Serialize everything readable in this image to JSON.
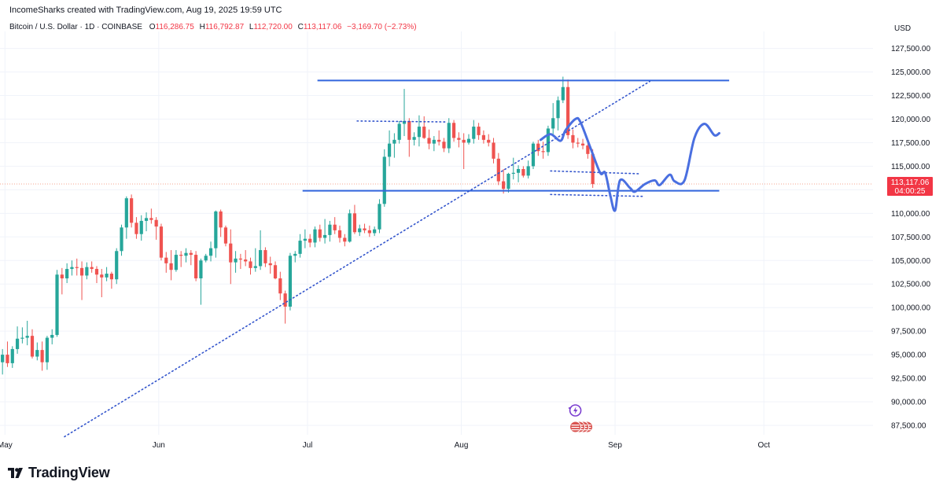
{
  "header": {
    "attribution": "IncomeSharks created with TradingView.com, Aug 19, 2025 19:59 UTC"
  },
  "legend": {
    "symbol": "Bitcoin / U.S. Dollar · 1D · COINBASE",
    "open_label": "O",
    "open": "116,286.75",
    "high_label": "H",
    "high": "116,792.87",
    "low_label": "L",
    "low": "112,720.00",
    "close_label": "C",
    "close": "113,117.06",
    "change": "−3,169.70 (−2.73%)"
  },
  "footer": {
    "brand": "TradingView",
    "logo_icon": "tradingview-logo-icon"
  },
  "chart_data": {
    "type": "candlestick",
    "currency_label": "USD",
    "y_ticks": [
      "127,500.00",
      "125,000.00",
      "122,500.00",
      "120,000.00",
      "117,500.00",
      "115,000.00",
      "112,500.00",
      "110,000.00",
      "107,500.00",
      "105,000.00",
      "102,500.00",
      "100,000.00",
      "97,500.00",
      "95,000.00",
      "92,500.00",
      "90,000.00",
      "87,500.00"
    ],
    "y_tick_values": [
      127500,
      125000,
      122500,
      120000,
      117500,
      115000,
      112500,
      110000,
      107500,
      105000,
      102500,
      100000,
      97500,
      95000,
      92500,
      90000,
      87500
    ],
    "ylim": [
      86500,
      129300
    ],
    "x_ticks": [
      {
        "label": "May",
        "date": "2025-05-01"
      },
      {
        "label": "Jun",
        "date": "2025-06-01"
      },
      {
        "label": "Jul",
        "date": "2025-07-01"
      },
      {
        "label": "Aug",
        "date": "2025-08-01"
      },
      {
        "label": "Sep",
        "date": "2025-09-01"
      },
      {
        "label": "Oct",
        "date": "2025-10-01"
      }
    ],
    "x_start": "2025-04-30",
    "x_end": "2025-10-23",
    "last_price": {
      "price": "113,117.06",
      "countdown": "04:00:25",
      "value": 113117.06
    },
    "candles": [
      {
        "o": 94200,
        "h": 95600,
        "l": 92900,
        "c": 95000
      },
      {
        "o": 95000,
        "h": 96400,
        "l": 93700,
        "c": 94100
      },
      {
        "o": 94100,
        "h": 95900,
        "l": 93600,
        "c": 95600
      },
      {
        "o": 95600,
        "h": 98000,
        "l": 95100,
        "c": 96700
      },
      {
        "o": 96700,
        "h": 97900,
        "l": 96200,
        "c": 96800
      },
      {
        "o": 96800,
        "h": 98600,
        "l": 96000,
        "c": 97000
      },
      {
        "o": 97000,
        "h": 97700,
        "l": 94600,
        "c": 94800
      },
      {
        "o": 94800,
        "h": 96300,
        "l": 94400,
        "c": 95500
      },
      {
        "o": 95500,
        "h": 96400,
        "l": 93300,
        "c": 94200
      },
      {
        "o": 94200,
        "h": 97000,
        "l": 93400,
        "c": 96800
      },
      {
        "o": 96800,
        "h": 97700,
        "l": 96100,
        "c": 97100
      },
      {
        "o": 97100,
        "h": 104000,
        "l": 96900,
        "c": 103500
      },
      {
        "o": 103500,
        "h": 104200,
        "l": 101400,
        "c": 103100
      },
      {
        "o": 103100,
        "h": 104700,
        "l": 102600,
        "c": 104100
      },
      {
        "o": 104100,
        "h": 105000,
        "l": 103400,
        "c": 104300
      },
      {
        "o": 104300,
        "h": 105200,
        "l": 103400,
        "c": 104200
      },
      {
        "o": 104200,
        "h": 104900,
        "l": 100800,
        "c": 103400
      },
      {
        "o": 103400,
        "h": 104800,
        "l": 103000,
        "c": 104300
      },
      {
        "o": 104300,
        "h": 104900,
        "l": 103700,
        "c": 104100
      },
      {
        "o": 104100,
        "h": 104400,
        "l": 102600,
        "c": 103500
      },
      {
        "o": 103500,
        "h": 104100,
        "l": 101100,
        "c": 103200
      },
      {
        "o": 103200,
        "h": 104300,
        "l": 102800,
        "c": 103600
      },
      {
        "o": 103600,
        "h": 103800,
        "l": 102000,
        "c": 103000
      },
      {
        "o": 103000,
        "h": 106300,
        "l": 102500,
        "c": 106000
      },
      {
        "o": 106000,
        "h": 108800,
        "l": 105500,
        "c": 108500
      },
      {
        "o": 108500,
        "h": 111800,
        "l": 107300,
        "c": 111600
      },
      {
        "o": 111600,
        "h": 112000,
        "l": 108500,
        "c": 109000
      },
      {
        "o": 109000,
        "h": 109600,
        "l": 107300,
        "c": 107800
      },
      {
        "o": 107800,
        "h": 109800,
        "l": 107100,
        "c": 109200
      },
      {
        "o": 109200,
        "h": 110100,
        "l": 108100,
        "c": 109500
      },
      {
        "o": 109500,
        "h": 110500,
        "l": 108900,
        "c": 109300
      },
      {
        "o": 109300,
        "h": 109600,
        "l": 107200,
        "c": 108600
      },
      {
        "o": 108600,
        "h": 108900,
        "l": 105000,
        "c": 105300
      },
      {
        "o": 105300,
        "h": 105900,
        "l": 103700,
        "c": 104700
      },
      {
        "o": 104700,
        "h": 106100,
        "l": 102900,
        "c": 104000
      },
      {
        "o": 104000,
        "h": 106100,
        "l": 103800,
        "c": 105600
      },
      {
        "o": 105600,
        "h": 106000,
        "l": 104300,
        "c": 105500
      },
      {
        "o": 105500,
        "h": 106300,
        "l": 104800,
        "c": 105800
      },
      {
        "o": 105800,
        "h": 106100,
        "l": 104500,
        "c": 105600
      },
      {
        "o": 105600,
        "h": 106000,
        "l": 102800,
        "c": 103100
      },
      {
        "o": 103100,
        "h": 105200,
        "l": 100300,
        "c": 105000
      },
      {
        "o": 105000,
        "h": 105700,
        "l": 104800,
        "c": 105500
      },
      {
        "o": 105500,
        "h": 107000,
        "l": 104900,
        "c": 106300
      },
      {
        "o": 106300,
        "h": 110300,
        "l": 105300,
        "c": 110200
      },
      {
        "o": 110200,
        "h": 110400,
        "l": 107500,
        "c": 108500
      },
      {
        "o": 108500,
        "h": 108700,
        "l": 106500,
        "c": 106800
      },
      {
        "o": 106800,
        "h": 108300,
        "l": 102500,
        "c": 104800
      },
      {
        "o": 104800,
        "h": 106000,
        "l": 103700,
        "c": 105200
      },
      {
        "o": 105200,
        "h": 105700,
        "l": 104100,
        "c": 105100
      },
      {
        "o": 105100,
        "h": 106100,
        "l": 104400,
        "c": 104900
      },
      {
        "o": 104900,
        "h": 105300,
        "l": 103500,
        "c": 104200
      },
      {
        "o": 104200,
        "h": 106300,
        "l": 103800,
        "c": 104400
      },
      {
        "o": 104400,
        "h": 108200,
        "l": 104000,
        "c": 106100
      },
      {
        "o": 106100,
        "h": 106400,
        "l": 104300,
        "c": 104700
      },
      {
        "o": 104700,
        "h": 105400,
        "l": 103600,
        "c": 104500
      },
      {
        "o": 104500,
        "h": 104900,
        "l": 103000,
        "c": 103100
      },
      {
        "o": 103100,
        "h": 103800,
        "l": 100800,
        "c": 101500
      },
      {
        "o": 101500,
        "h": 101800,
        "l": 98300,
        "c": 100100
      },
      {
        "o": 100100,
        "h": 105800,
        "l": 99700,
        "c": 105500
      },
      {
        "o": 105500,
        "h": 106000,
        "l": 104800,
        "c": 105700
      },
      {
        "o": 105700,
        "h": 107800,
        "l": 105300,
        "c": 107100
      },
      {
        "o": 107100,
        "h": 108300,
        "l": 106300,
        "c": 107300
      },
      {
        "o": 107300,
        "h": 107800,
        "l": 106400,
        "c": 106900
      },
      {
        "o": 106900,
        "h": 108600,
        "l": 106400,
        "c": 108300
      },
      {
        "o": 108300,
        "h": 108800,
        "l": 107000,
        "c": 107400
      },
      {
        "o": 107400,
        "h": 109400,
        "l": 106800,
        "c": 107700
      },
      {
        "o": 107700,
        "h": 109200,
        "l": 107000,
        "c": 108800
      },
      {
        "o": 108800,
        "h": 109600,
        "l": 107800,
        "c": 108200
      },
      {
        "o": 108200,
        "h": 108700,
        "l": 106900,
        "c": 107400
      },
      {
        "o": 107400,
        "h": 107800,
        "l": 106500,
        "c": 107000
      },
      {
        "o": 107000,
        "h": 110400,
        "l": 106900,
        "c": 110000
      },
      {
        "o": 110000,
        "h": 110900,
        "l": 107800,
        "c": 108000
      },
      {
        "o": 108000,
        "h": 108800,
        "l": 107600,
        "c": 108400
      },
      {
        "o": 108400,
        "h": 108900,
        "l": 107900,
        "c": 108200
      },
      {
        "o": 108200,
        "h": 108700,
        "l": 107500,
        "c": 107900
      },
      {
        "o": 107900,
        "h": 108600,
        "l": 107600,
        "c": 108300
      },
      {
        "o": 108300,
        "h": 111500,
        "l": 107900,
        "c": 111000
      },
      {
        "o": 111000,
        "h": 116800,
        "l": 110700,
        "c": 116000
      },
      {
        "o": 116000,
        "h": 118800,
        "l": 115000,
        "c": 117400
      },
      {
        "o": 117400,
        "h": 118500,
        "l": 115900,
        "c": 117800
      },
      {
        "o": 117800,
        "h": 119800,
        "l": 117400,
        "c": 119500
      },
      {
        "o": 119500,
        "h": 123200,
        "l": 118200,
        "c": 119800
      },
      {
        "o": 119800,
        "h": 120100,
        "l": 116000,
        "c": 117800
      },
      {
        "o": 117800,
        "h": 118600,
        "l": 117200,
        "c": 118100
      },
      {
        "o": 118100,
        "h": 120400,
        "l": 117100,
        "c": 119200
      },
      {
        "o": 119200,
        "h": 120300,
        "l": 117900,
        "c": 118000
      },
      {
        "o": 118000,
        "h": 118900,
        "l": 116800,
        "c": 117400
      },
      {
        "o": 117400,
        "h": 118200,
        "l": 116600,
        "c": 117800
      },
      {
        "o": 117800,
        "h": 118800,
        "l": 117200,
        "c": 117600
      },
      {
        "o": 117600,
        "h": 118000,
        "l": 116500,
        "c": 116900
      },
      {
        "o": 116900,
        "h": 120100,
        "l": 116400,
        "c": 119600
      },
      {
        "o": 119600,
        "h": 119900,
        "l": 117600,
        "c": 118000
      },
      {
        "o": 118000,
        "h": 118600,
        "l": 117000,
        "c": 117800
      },
      {
        "o": 117800,
        "h": 118500,
        "l": 114700,
        "c": 117500
      },
      {
        "o": 117500,
        "h": 118400,
        "l": 117300,
        "c": 117900
      },
      {
        "o": 117900,
        "h": 119900,
        "l": 117400,
        "c": 119200
      },
      {
        "o": 119200,
        "h": 119600,
        "l": 117800,
        "c": 118300
      },
      {
        "o": 118300,
        "h": 118800,
        "l": 117400,
        "c": 117800
      },
      {
        "o": 117800,
        "h": 118400,
        "l": 117100,
        "c": 117500
      },
      {
        "o": 117500,
        "h": 118000,
        "l": 115300,
        "c": 115800
      },
      {
        "o": 115800,
        "h": 116400,
        "l": 113000,
        "c": 113400
      },
      {
        "o": 113400,
        "h": 114700,
        "l": 112100,
        "c": 112600
      },
      {
        "o": 112600,
        "h": 114300,
        "l": 112200,
        "c": 114200
      },
      {
        "o": 114200,
        "h": 115900,
        "l": 113600,
        "c": 114300
      },
      {
        "o": 114300,
        "h": 115100,
        "l": 113300,
        "c": 114700
      },
      {
        "o": 114700,
        "h": 115000,
        "l": 113800,
        "c": 114000
      },
      {
        "o": 114000,
        "h": 115600,
        "l": 113700,
        "c": 115000
      },
      {
        "o": 115000,
        "h": 117600,
        "l": 114700,
        "c": 117400
      },
      {
        "o": 117400,
        "h": 117800,
        "l": 116100,
        "c": 116600
      },
      {
        "o": 116600,
        "h": 117600,
        "l": 115800,
        "c": 116500
      },
      {
        "o": 116500,
        "h": 119300,
        "l": 116100,
        "c": 119000
      },
      {
        "o": 119000,
        "h": 121700,
        "l": 118400,
        "c": 120100
      },
      {
        "o": 120100,
        "h": 122400,
        "l": 118800,
        "c": 122000
      },
      {
        "o": 122000,
        "h": 124500,
        "l": 121700,
        "c": 123400
      },
      {
        "o": 123400,
        "h": 124200,
        "l": 117900,
        "c": 118300
      },
      {
        "o": 118300,
        "h": 118900,
        "l": 116900,
        "c": 117500
      },
      {
        "o": 117500,
        "h": 118000,
        "l": 117000,
        "c": 117400
      },
      {
        "o": 117400,
        "h": 117900,
        "l": 116800,
        "c": 117200
      },
      {
        "o": 117200,
        "h": 117500,
        "l": 115800,
        "c": 116300
      },
      {
        "o": 116300,
        "h": 116800,
        "l": 112700,
        "c": 113100
      }
    ],
    "drawings": [
      {
        "kind": "horizontal_line",
        "name": "resistance",
        "price": 124100,
        "from": "2025-07-03",
        "to": "2025-09-24",
        "color": "#3366dd",
        "style": "solid"
      },
      {
        "kind": "horizontal_line",
        "name": "support",
        "price": 112400,
        "from": "2025-06-30",
        "to": "2025-09-22",
        "color": "#3366dd",
        "style": "solid"
      },
      {
        "kind": "trend_line",
        "name": "rising_trendline",
        "p1": {
          "date": "2025-05-13",
          "price": 86300
        },
        "p2": {
          "date": "2025-09-08",
          "price": 124000
        },
        "color": "#3355cc",
        "style": "dotted"
      },
      {
        "kind": "segment",
        "name": "range_top",
        "p1": {
          "date": "2025-07-11",
          "price": 119800
        },
        "p2": {
          "date": "2025-07-29",
          "price": 119700
        },
        "color": "#3355cc",
        "style": "dotted"
      },
      {
        "kind": "segment",
        "name": "breakdown_level",
        "p1": {
          "date": "2025-08-19",
          "price": 114500
        },
        "p2": {
          "date": "2025-09-06",
          "price": 114200
        },
        "color": "#3355cc",
        "style": "dotted"
      },
      {
        "kind": "segment",
        "name": "projected_low",
        "p1": {
          "date": "2025-08-19",
          "price": 112000
        },
        "p2": {
          "date": "2025-09-07",
          "price": 111800
        },
        "color": "#3355cc",
        "style": "dotted"
      },
      {
        "kind": "projection_path",
        "name": "price_projection",
        "color": "#4a6fe0",
        "points": [
          {
            "date": "2025-08-17",
            "price": 117800
          },
          {
            "date": "2025-08-19",
            "price": 118400
          },
          {
            "date": "2025-08-21",
            "price": 117700
          },
          {
            "date": "2025-08-22",
            "price": 118800
          },
          {
            "date": "2025-08-24",
            "price": 120000
          },
          {
            "date": "2025-08-25",
            "price": 119700
          },
          {
            "date": "2025-08-27",
            "price": 117000
          },
          {
            "date": "2025-08-29",
            "price": 114300
          },
          {
            "date": "2025-08-30",
            "price": 114300
          },
          {
            "date": "2025-08-31",
            "price": 112000
          },
          {
            "date": "2025-09-01",
            "price": 110300
          },
          {
            "date": "2025-09-02",
            "price": 113500
          },
          {
            "date": "2025-09-04",
            "price": 112700
          },
          {
            "date": "2025-09-05",
            "price": 112300
          },
          {
            "date": "2025-09-07",
            "price": 113100
          },
          {
            "date": "2025-09-09",
            "price": 113500
          },
          {
            "date": "2025-09-10",
            "price": 113000
          },
          {
            "date": "2025-09-12",
            "price": 114100
          },
          {
            "date": "2025-09-13",
            "price": 113400
          },
          {
            "date": "2025-09-15",
            "price": 113500
          },
          {
            "date": "2025-09-17",
            "price": 118000
          },
          {
            "date": "2025-09-19",
            "price": 119500
          },
          {
            "date": "2025-09-21",
            "price": 118300
          },
          {
            "date": "2025-09-22",
            "price": 118500
          }
        ]
      }
    ],
    "event_icons": [
      {
        "name": "lightning-event-icon",
        "date": "2025-08-24",
        "color": "#7b3fd0"
      },
      {
        "name": "us-flag-event-icon",
        "date": "2025-08-24",
        "color": "#d9534f",
        "count": 4
      }
    ],
    "colors": {
      "up": "#26a69a",
      "down": "#ef5350",
      "drawing": "#3366dd",
      "last_price_bg": "#f23645",
      "grid": "#f0f3fa",
      "axis_text": "#131722"
    }
  }
}
